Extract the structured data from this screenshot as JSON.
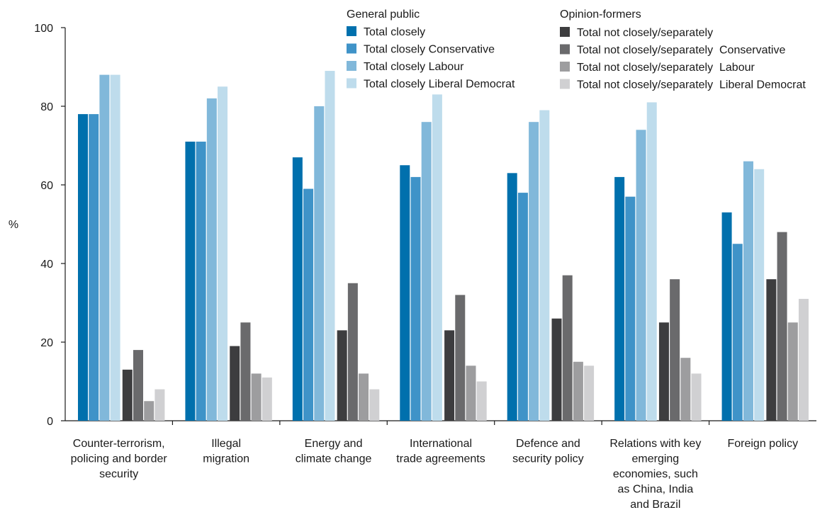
{
  "chart_data": {
    "type": "bar",
    "ylabel": "%",
    "ylim": [
      0,
      100
    ],
    "yticks": [
      0,
      20,
      40,
      60,
      80,
      100
    ],
    "grid": false,
    "legend_position": "top-right",
    "categories": [
      [
        "Counter-terrorism,",
        "policing and border",
        "security"
      ],
      [
        "Illegal",
        "migration"
      ],
      [
        "Energy and",
        "climate change"
      ],
      [
        "International",
        "trade agreements"
      ],
      [
        "Defence and",
        "security policy"
      ],
      [
        "Relations with key",
        "emerging",
        "economies, such",
        "as China, India",
        "and Brazil"
      ],
      [
        "Foreign policy"
      ]
    ],
    "groups": [
      {
        "title": "General public",
        "series": [
          {
            "name": "Total closely",
            "color": "#0070ad",
            "values": [
              78,
              71,
              67,
              65,
              63,
              62,
              53
            ]
          },
          {
            "name": "Total closely Conservative",
            "color": "#3f93c8",
            "values": [
              78,
              71,
              59,
              62,
              58,
              57,
              45
            ]
          },
          {
            "name": "Total closely Labour",
            "color": "#81b8da",
            "values": [
              88,
              82,
              80,
              76,
              76,
              74,
              66
            ]
          },
          {
            "name": "Total closely Liberal Democrat",
            "color": "#bedcec",
            "values": [
              88,
              85,
              89,
              83,
              79,
              81,
              64
            ]
          }
        ]
      },
      {
        "title": "Opinion-formers",
        "series": [
          {
            "name": "Total not closely/separately",
            "color": "#3d3d3f",
            "values": [
              13,
              19,
              23,
              23,
              26,
              25,
              36
            ]
          },
          {
            "name": "Total not closely/separately  Conservative",
            "color": "#6a6a6c",
            "values": [
              18,
              25,
              35,
              32,
              37,
              36,
              48
            ]
          },
          {
            "name": "Total not closely/separately  Labour",
            "color": "#9d9d9f",
            "values": [
              5,
              12,
              12,
              14,
              15,
              16,
              25
            ]
          },
          {
            "name": "Total not closely/separately  Liberal Democrat",
            "color": "#d0d0d2",
            "values": [
              8,
              11,
              8,
              10,
              14,
              12,
              31
            ]
          }
        ]
      }
    ]
  }
}
